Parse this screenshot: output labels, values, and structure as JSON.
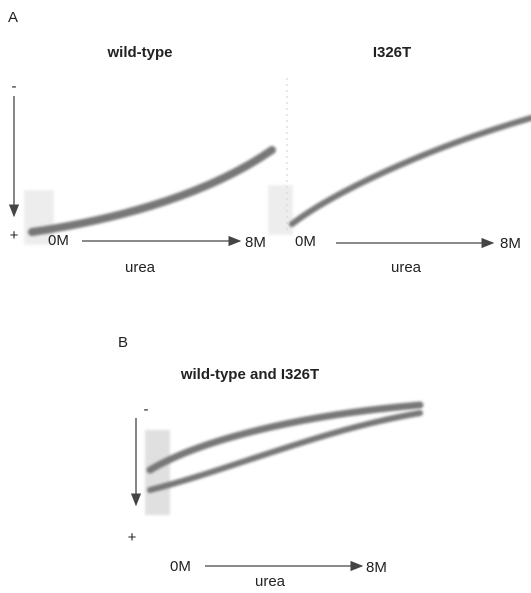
{
  "panels": [
    {
      "label": "A",
      "gels": [
        {
          "title": "wild-type",
          "top_sign": "-",
          "bottom_sign": "+",
          "start": "0M",
          "end": "8M",
          "axis_label": "urea"
        },
        {
          "title": "I326T",
          "start": "0M",
          "end": "8M",
          "axis_label": "urea"
        }
      ]
    },
    {
      "label": "B",
      "gels": [
        {
          "title": "wild-type and I326T",
          "top_sign": "-",
          "bottom_sign": "+",
          "start": "0M",
          "end": "8M",
          "axis_label": "urea"
        }
      ]
    }
  ]
}
